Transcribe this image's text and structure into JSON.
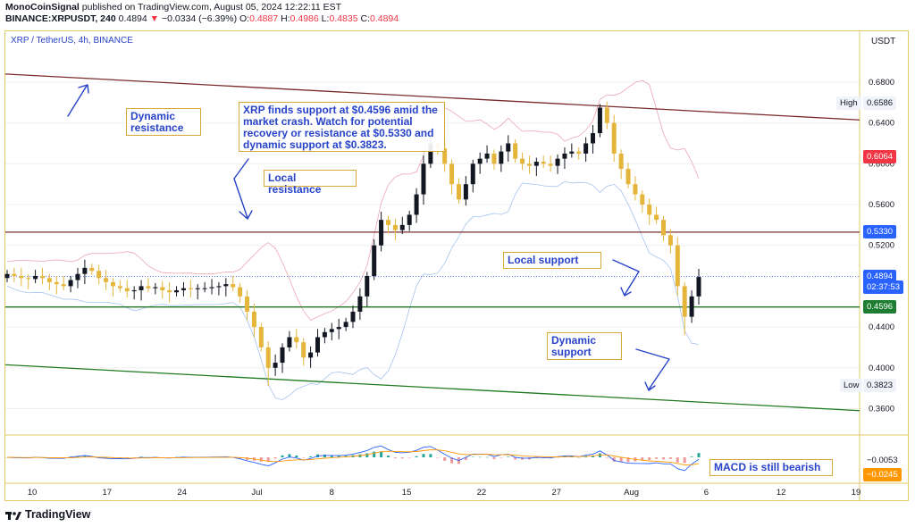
{
  "header": {
    "line1_author": "MonoCoinSignal",
    "line1_rest": "published on TradingView.com, August 05, 2024 12:22:11 EST",
    "symbol": "BINANCE:XRPUSDT, 240",
    "price": "0.4894",
    "down_arrow": "▼",
    "change": "−0.0334 (−6.39%)",
    "o_label": "O:",
    "o_val": "0.4887",
    "h_label": "H:",
    "h_val": "0.4986",
    "l_label": "L:",
    "l_val": "0.4835",
    "c_label": "C:",
    "c_val": "0.4894"
  },
  "chart_label": "XRP / TetherUS, 4h, BINANCE",
  "currency": "USDT",
  "annotations": {
    "dynamic_resistance": "Dynamic resistance",
    "main_text": "XRP finds support at $0.4596 amid the market crash. Watch for potential recovery or resistance at $0.5330 and dynamic support at $0.3823.",
    "local_resistance": "Local resistance",
    "local_support": "Local support",
    "dynamic_support": "Dynamic support",
    "macd": "MACD is still bearish"
  },
  "price_badges": {
    "high_label": "High",
    "high_val": "0.6586",
    "red_level": "0.6064",
    "resistance": "0.5330",
    "last_price": "0.4894",
    "countdown": "02:37:53",
    "support": "0.4596",
    "low_label": "Low",
    "low_val": "0.3823",
    "macd_val1": "−0.0053",
    "macd_val2": "−0.0245"
  },
  "footer": {
    "brand": "TradingView"
  },
  "colors": {
    "up": "#131722",
    "down": "#e4b53a",
    "resistance_line": "#7a2b2b",
    "support_line": "#1f7a1f",
    "bb": "#e88fa0",
    "bb_lower": "#8fb4e8",
    "note_text": "#2743c9",
    "note_border": "#d6a936",
    "red_badge": "#f23645",
    "blue_badge": "#2962ff",
    "green_badge": "#1e7d32"
  },
  "chart_data": {
    "type": "candlestick",
    "title": "XRP / TetherUS, 4h, BINANCE",
    "y_axis_ticks": [
      0.36,
      0.4,
      0.44,
      0.52,
      0.56,
      0.6,
      0.64,
      0.68
    ],
    "y_tick_labels": [
      "0.3600",
      "0.4000",
      "0.4400",
      "0.5200",
      "0.5600",
      "0.6000",
      "0.6400",
      "0.6800"
    ],
    "y_range": [
      0.335,
      0.715
    ],
    "x_tick_labels": [
      "10",
      "17",
      "24",
      "Jul",
      "8",
      "15",
      "22",
      "27",
      "Aug",
      "6",
      "12",
      "19"
    ],
    "horizontal_levels": {
      "resistance": 0.533,
      "support": 0.4596
    },
    "trend_lines": {
      "dynamic_resistance": {
        "from_price": 0.688,
        "to_price": 0.643
      },
      "dynamic_support": {
        "from_price": 0.403,
        "to_price": 0.358
      }
    },
    "high": 0.6586,
    "low": 0.3823,
    "last": 0.4894,
    "price_path": [
      0.492,
      0.49,
      0.488,
      0.487,
      0.49,
      0.488,
      0.484,
      0.482,
      0.48,
      0.486,
      0.492,
      0.498,
      0.495,
      0.488,
      0.484,
      0.48,
      0.478,
      0.475,
      0.476,
      0.48,
      0.478,
      0.479,
      0.476,
      0.474,
      0.476,
      0.478,
      0.477,
      0.478,
      0.478,
      0.479,
      0.48,
      0.482,
      0.479,
      0.47,
      0.455,
      0.44,
      0.42,
      0.4,
      0.405,
      0.42,
      0.43,
      0.425,
      0.41,
      0.415,
      0.43,
      0.435,
      0.438,
      0.44,
      0.445,
      0.455,
      0.47,
      0.49,
      0.52,
      0.545,
      0.54,
      0.535,
      0.54,
      0.55,
      0.57,
      0.6,
      0.62,
      0.615,
      0.6,
      0.58,
      0.565,
      0.58,
      0.6,
      0.605,
      0.61,
      0.6,
      0.612,
      0.62,
      0.605,
      0.6,
      0.598,
      0.602,
      0.6,
      0.598,
      0.605,
      0.61,
      0.612,
      0.61,
      0.62,
      0.63,
      0.655,
      0.64,
      0.61,
      0.595,
      0.58,
      0.57,
      0.56,
      0.55,
      0.545,
      0.53,
      0.52,
      0.48,
      0.45,
      0.47,
      0.489
    ]
  }
}
